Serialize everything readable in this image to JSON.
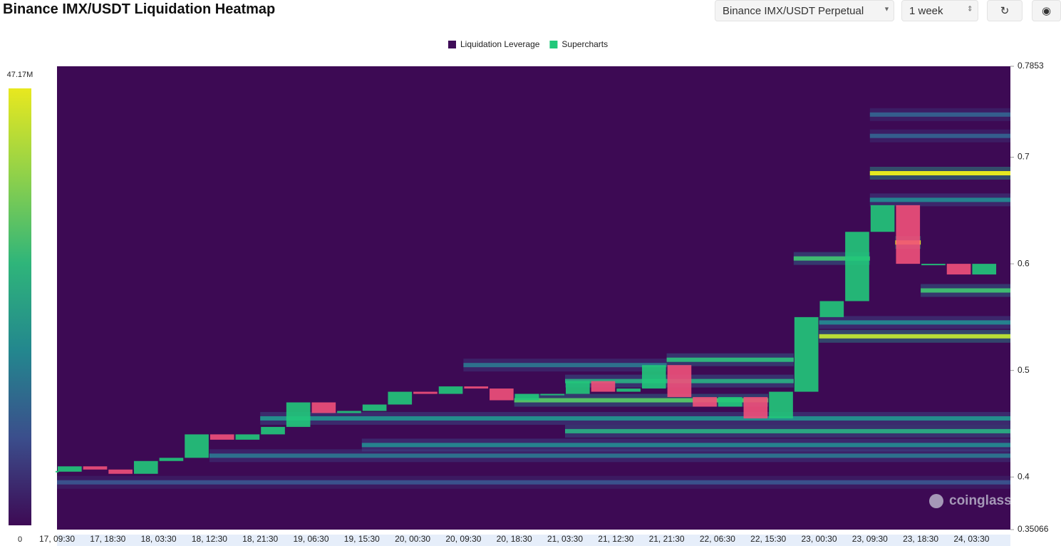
{
  "chart_data": {
    "type": "heatmap",
    "title": "Binance IMX/USDT Liquidation Heatmap",
    "controls": {
      "pair": "Binance IMX/USDT Perpetual",
      "range": "1 week"
    },
    "legend": [
      {
        "name": "Liquidation Leverage",
        "color": "#3f0d58"
      },
      {
        "name": "Supercharts",
        "color": "#21c87a"
      }
    ],
    "watermark": "coinglass",
    "colorbar": {
      "ticks": [
        0,
        {
          "value": 47170000,
          "label": "47.17M"
        }
      ],
      "colors": [
        "#3d0a54",
        "#3b4e8c",
        "#23878e",
        "#2fb57a",
        "#8fd14a",
        "#e8e81f"
      ]
    },
    "ylim": [
      0.35066,
      0.7853
    ],
    "yticks": [
      0.35066,
      0.4,
      0.5,
      0.6,
      0.7,
      0.7853
    ],
    "categories": [
      "17, 09:30",
      null,
      "17, 18:30",
      null,
      "18, 03:30",
      null,
      "18, 12:30",
      null,
      "18, 21:30",
      null,
      "19, 06:30",
      null,
      "19, 15:30",
      null,
      "20, 00:30",
      null,
      "20, 09:30",
      null,
      "20, 18:30",
      null,
      "21, 03:30",
      null,
      "21, 12:30",
      null,
      "21, 21:30",
      null,
      "22, 06:30",
      null,
      "22, 15:30",
      null,
      "23, 00:30",
      null,
      "23, 09:30",
      null,
      "23, 18:30",
      null,
      "24, 03:30",
      null
    ],
    "price": {
      "up_color": "#21c87a",
      "down_color": "#f0507a",
      "values": [
        0.405,
        0.41,
        0.407,
        0.403,
        0.415,
        0.418,
        0.44,
        0.435,
        0.44,
        0.447,
        0.47,
        0.46,
        0.462,
        0.468,
        0.48,
        0.478,
        0.485,
        0.483,
        0.472,
        0.478,
        0.478,
        0.49,
        0.48,
        0.483,
        0.505,
        0.475,
        0.466,
        0.475,
        0.455,
        0.48,
        0.55,
        0.565,
        0.63,
        0.655,
        0.6,
        0.6,
        0.59,
        0.6
      ]
    },
    "bands": [
      {
        "price": 0.395,
        "start": 0,
        "end": 38,
        "value": 10000000
      },
      {
        "price": 0.42,
        "start": 6,
        "end": 38,
        "value": 15000000
      },
      {
        "price": 0.43,
        "start": 12,
        "end": 38,
        "value": 18000000
      },
      {
        "price": 0.443,
        "start": 20,
        "end": 38,
        "value": 25000000
      },
      {
        "price": 0.455,
        "start": 8,
        "end": 38,
        "value": 20000000
      },
      {
        "price": 0.472,
        "start": 18,
        "end": 28,
        "value": 32000000
      },
      {
        "price": 0.49,
        "start": 20,
        "end": 29,
        "value": 25000000
      },
      {
        "price": 0.505,
        "start": 16,
        "end": 24,
        "value": 15000000
      },
      {
        "price": 0.51,
        "start": 24,
        "end": 29,
        "value": 28000000
      },
      {
        "price": 0.532,
        "start": 30,
        "end": 38,
        "value": 42000000
      },
      {
        "price": 0.545,
        "start": 30,
        "end": 38,
        "value": 18000000
      },
      {
        "price": 0.575,
        "start": 34,
        "end": 38,
        "value": 30000000
      },
      {
        "price": 0.605,
        "start": 29,
        "end": 32,
        "value": 30000000
      },
      {
        "price": 0.62,
        "start": 33,
        "end": 34,
        "value": 47000000
      },
      {
        "price": 0.66,
        "start": 32,
        "end": 38,
        "value": 18000000
      },
      {
        "price": 0.685,
        "start": 32,
        "end": 38,
        "value": 47000000
      },
      {
        "price": 0.72,
        "start": 32,
        "end": 38,
        "value": 12000000
      },
      {
        "price": 0.74,
        "start": 32,
        "end": 38,
        "value": 12000000
      }
    ]
  }
}
